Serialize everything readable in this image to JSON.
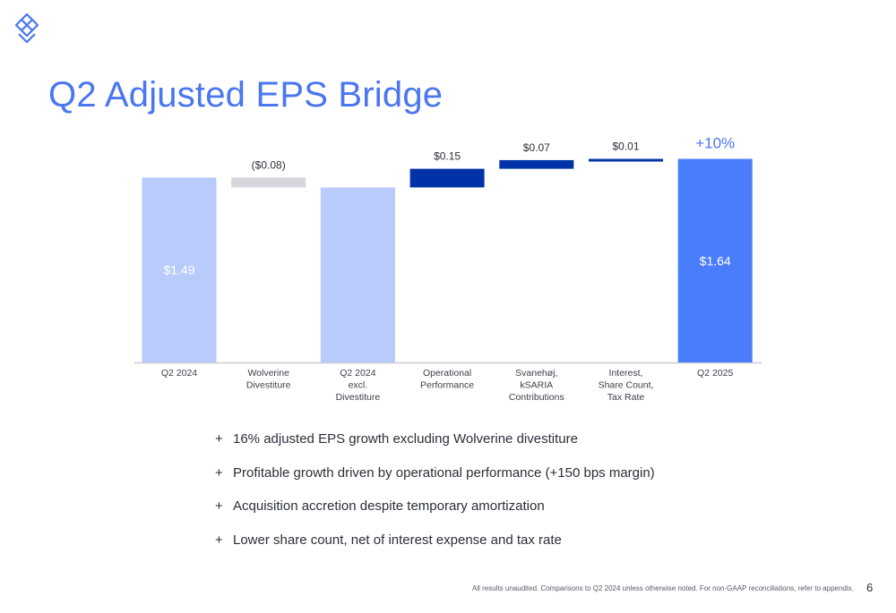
{
  "title": "Q2 Adjusted EPS Bridge",
  "logo": {
    "icon": "diamond-lattice-logo",
    "color": "#4a76f0"
  },
  "chart_data": {
    "type": "bar",
    "subtype": "waterfall",
    "title": "",
    "xlabel": "",
    "ylabel": "",
    "ylim": [
      0,
      1.64
    ],
    "grid": false,
    "legend": "none",
    "categories": [
      "Q2 2024",
      "Wolverine Divestiture",
      "Q2 2024 excl. Divestiture",
      "Operational Performance",
      "Svanehøj, kSARIA Contributions",
      "Interest, Share Count, Tax Rate",
      "Q2 2025"
    ],
    "category_lines": [
      [
        "Q2 2024"
      ],
      [
        "Wolverine",
        "Divestiture"
      ],
      [
        "Q2 2024",
        "excl.",
        "Divestiture"
      ],
      [
        "Operational",
        "Performance"
      ],
      [
        "Svanehøj,",
        "kSARIA",
        "Contributions"
      ],
      [
        "Interest,",
        "Share Count,",
        "Tax Rate"
      ],
      [
        "Q2 2025"
      ]
    ],
    "kinds": [
      "total",
      "delta",
      "subtotal",
      "delta",
      "delta",
      "delta",
      "total"
    ],
    "values": [
      1.49,
      -0.08,
      1.41,
      0.15,
      0.07,
      0.01,
      1.64
    ],
    "labels": [
      "$1.49",
      "($0.08)",
      "",
      "$0.15",
      "$0.07",
      "$0.01",
      "$1.64"
    ],
    "label_inside": [
      true,
      false,
      false,
      false,
      false,
      false,
      true
    ],
    "colors": [
      "#b9cbfb",
      "#d5d7dc",
      "#b9cbfb",
      "#0033a8",
      "#0033a8",
      "#0033a8",
      "#4a7dfc"
    ],
    "annotation": {
      "category": "Q2 2025",
      "text": "+10%",
      "color": "#4a76f0"
    }
  },
  "bullets": [
    "16% adjusted EPS growth excluding Wolverine divestiture",
    "Profitable growth driven by operational performance (+150 bps margin)",
    "Acquisition accretion despite temporary amortization",
    "Lower share count, net of interest expense and tax rate"
  ],
  "bullet_marker": "+",
  "footnote": "All results unaudited. Comparisons to Q2 2024 unless otherwise noted. For non-GAAP reconciliations, refer to appendix.",
  "page_number": "6"
}
